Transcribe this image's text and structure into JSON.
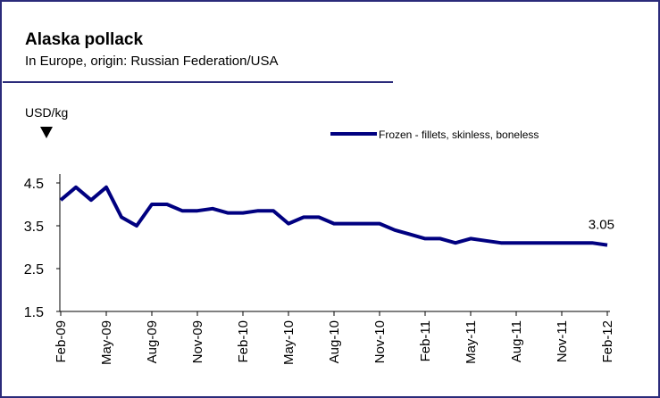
{
  "chart_data": {
    "type": "line",
    "title": "Alaska pollack",
    "subtitle": "In Europe, origin: Russian Federation/USA",
    "y_label": "USD/kg",
    "categories": [
      "Feb-09",
      null,
      null,
      "May-09",
      null,
      null,
      "Aug-09",
      null,
      null,
      "Nov-09",
      null,
      null,
      "Feb-10",
      null,
      null,
      "May-10",
      null,
      null,
      "Aug-10",
      null,
      null,
      "Nov-10",
      null,
      null,
      "Feb-11",
      null,
      null,
      "May-11",
      null,
      null,
      "Aug-11",
      null,
      null,
      "Nov-11",
      null,
      null,
      "Feb-12"
    ],
    "series": [
      {
        "name": "Frozen - fillets, skinless, boneless",
        "color": "#000080",
        "values": [
          4.1,
          4.4,
          4.1,
          4.4,
          3.7,
          3.5,
          4.0,
          4.0,
          3.85,
          3.85,
          3.9,
          3.8,
          3.8,
          3.85,
          3.85,
          3.55,
          3.7,
          3.7,
          3.55,
          3.55,
          3.55,
          3.55,
          3.4,
          3.3,
          3.2,
          3.2,
          3.1,
          3.2,
          3.15,
          3.1,
          3.1,
          3.1,
          3.1,
          3.1,
          3.1,
          3.1,
          3.05
        ]
      }
    ],
    "ylim": [
      1.5,
      4.5
    ],
    "yticks": [
      1.5,
      2.5,
      3.5,
      4.5
    ],
    "grid": false
  }
}
